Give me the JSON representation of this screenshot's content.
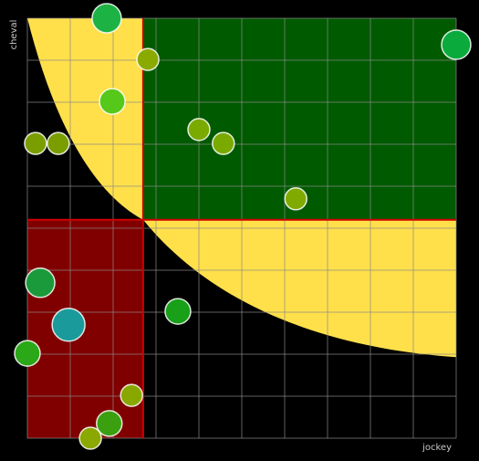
{
  "chart_data": {
    "type": "scatter",
    "xlabel": "jockey",
    "ylabel": "cheval",
    "xlim": [
      0,
      10
    ],
    "ylim": [
      0,
      10
    ],
    "xticks": [
      0,
      1,
      2,
      3,
      4,
      5,
      6,
      7,
      8,
      9,
      10
    ],
    "yticks": [
      0,
      1,
      2,
      3,
      4,
      5,
      6,
      7,
      8,
      9,
      10
    ],
    "grid": true,
    "xdivider": 2.7,
    "ydivider": 5.2,
    "x": [
      1.85,
      2.81,
      10.0,
      1.98,
      0.19,
      0.72,
      4.0,
      4.57,
      6.26,
      0.3,
      0.96,
      3.51,
      0.0,
      2.43,
      1.91,
      1.47
    ],
    "values": [
      10.0,
      9.02,
      9.37,
      8.02,
      7.02,
      7.02,
      7.35,
      7.02,
      5.7,
      3.7,
      2.7,
      3.02,
      2.02,
      1.02,
      0.35,
      0.0
    ],
    "sizes": [
      16,
      12,
      16,
      14,
      12,
      12,
      12,
      12,
      12,
      16,
      18,
      14,
      14,
      12,
      14,
      12
    ],
    "colors": [
      "#1db344",
      "#8aaa00",
      "#0aab3c",
      "#55c81a",
      "#7a9e00",
      "#7a9e00",
      "#7aaa00",
      "#7aaa00",
      "#80aa00",
      "#1a9a3a",
      "#1a9a9a",
      "#18a018",
      "#2aa818",
      "#88a800",
      "#3aa010",
      "#8aa800"
    ]
  }
}
